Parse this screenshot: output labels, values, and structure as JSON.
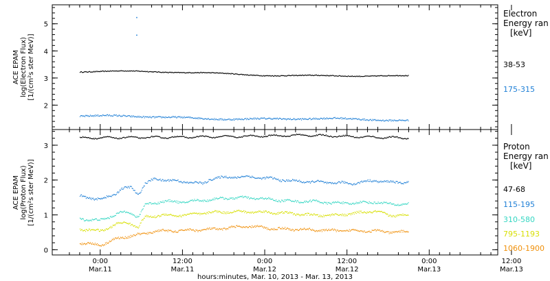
{
  "chart_data": [
    {
      "type": "scatter",
      "panel": "electron",
      "ylabel_lines": [
        "ACE EPAM",
        "log(Electron Flux)",
        "[1/(cm²s ster MeV)]"
      ],
      "ylim": [
        1.1,
        5.7
      ],
      "yticks": [
        2,
        3,
        4,
        5
      ],
      "ytick_labels": [
        "2",
        "3",
        "4",
        "5"
      ],
      "legend": {
        "title_lines": [
          "Electron",
          "Energy ran",
          "[keV]"
        ]
      },
      "series": [
        {
          "name": "38-53",
          "color": "#000000",
          "y_start": 3.27,
          "y_end": 3.05,
          "waves": [
            [
              0.03,
              0.9
            ],
            [
              0.02,
              2.3
            ]
          ]
        },
        {
          "name": "175-315",
          "color": "#1e7fd6",
          "y_start": 1.6,
          "y_end": 1.45,
          "waves": [
            [
              0.03,
              1.0
            ],
            [
              0.02,
              2.8
            ]
          ]
        }
      ],
      "outliers": [
        {
          "t_hours": 10.5,
          "y": 5.25
        },
        {
          "t_hours": 10.5,
          "y": 4.6
        }
      ]
    },
    {
      "type": "scatter",
      "panel": "proton",
      "ylabel_lines": [
        "ACE EPAM",
        "log(Proton Flux)",
        "[1/(cm²s ster MeV)]"
      ],
      "ylim": [
        -0.15,
        3.45
      ],
      "yticks": [
        0,
        1,
        2,
        3
      ],
      "ytick_labels": [
        "0",
        "1",
        "2",
        "3"
      ],
      "legend": {
        "title_lines": [
          "Proton",
          "Energy ran",
          "[keV]"
        ]
      },
      "series": [
        {
          "name": "47-68",
          "color": "#000000",
          "points": [
            [
              -6,
              3.22
            ],
            [
              20,
              3.24
            ],
            [
              40,
              3.26
            ],
            [
              60,
              3.3
            ],
            [
              80,
              3.24
            ],
            [
              90,
              3.22
            ]
          ]
        },
        {
          "name": "115-195",
          "color": "#1e7fd6",
          "points": [
            [
              -6,
              1.55
            ],
            [
              0,
              1.45
            ],
            [
              4,
              1.6
            ],
            [
              6,
              1.75
            ],
            [
              9,
              1.8
            ],
            [
              11,
              1.6
            ],
            [
              13,
              1.9
            ],
            [
              16,
              2.05
            ],
            [
              20,
              2.0
            ],
            [
              26,
              1.95
            ],
            [
              30,
              1.9
            ],
            [
              32,
              2.05
            ],
            [
              38,
              2.1
            ],
            [
              44,
              2.1
            ],
            [
              50,
              2.05
            ],
            [
              56,
              1.98
            ],
            [
              62,
              1.96
            ],
            [
              68,
              1.93
            ],
            [
              74,
              1.92
            ],
            [
              80,
              2.0
            ],
            [
              84,
              1.95
            ],
            [
              90,
              1.95
            ]
          ]
        },
        {
          "name": "310-580",
          "color": "#33d6c2",
          "points": [
            [
              -6,
              0.9
            ],
            [
              0,
              0.85
            ],
            [
              5,
              1.05
            ],
            [
              8,
              1.1
            ],
            [
              11,
              0.95
            ],
            [
              13,
              1.3
            ],
            [
              18,
              1.4
            ],
            [
              24,
              1.38
            ],
            [
              32,
              1.45
            ],
            [
              38,
              1.5
            ],
            [
              44,
              1.5
            ],
            [
              50,
              1.45
            ],
            [
              56,
              1.4
            ],
            [
              62,
              1.4
            ],
            [
              68,
              1.35
            ],
            [
              74,
              1.35
            ],
            [
              80,
              1.38
            ],
            [
              84,
              1.32
            ],
            [
              90,
              1.32
            ]
          ]
        },
        {
          "name": "795-1193",
          "color": "#d7df01",
          "points": [
            [
              -6,
              0.6
            ],
            [
              0,
              0.55
            ],
            [
              5,
              0.75
            ],
            [
              8,
              0.8
            ],
            [
              11,
              0.65
            ],
            [
              13,
              0.95
            ],
            [
              18,
              1.0
            ],
            [
              24,
              1.0
            ],
            [
              32,
              1.08
            ],
            [
              38,
              1.1
            ],
            [
              44,
              1.1
            ],
            [
              50,
              1.08
            ],
            [
              56,
              1.05
            ],
            [
              62,
              1.0
            ],
            [
              68,
              1.0
            ],
            [
              74,
              1.05
            ],
            [
              80,
              1.12
            ],
            [
              84,
              1.0
            ],
            [
              90,
              1.0
            ]
          ]
        },
        {
          "name": "1060-1900",
          "color": "#f0900a",
          "points": [
            [
              -6,
              0.2
            ],
            [
              0,
              0.15
            ],
            [
              4,
              0.3
            ],
            [
              8,
              0.4
            ],
            [
              12,
              0.45
            ],
            [
              16,
              0.55
            ],
            [
              22,
              0.55
            ],
            [
              28,
              0.58
            ],
            [
              34,
              0.6
            ],
            [
              38,
              0.65
            ],
            [
              44,
              0.68
            ],
            [
              50,
              0.62
            ],
            [
              56,
              0.6
            ],
            [
              62,
              0.58
            ],
            [
              68,
              0.56
            ],
            [
              74,
              0.56
            ],
            [
              80,
              0.55
            ],
            [
              84,
              0.52
            ],
            [
              90,
              0.52
            ]
          ]
        }
      ]
    }
  ],
  "x_axis": {
    "xlim_hours": [
      -14,
      116
    ],
    "data_range_hours": [
      -6,
      90
    ],
    "major_ticks": [
      {
        "t": 0,
        "time": "0:00",
        "date": "Mar.11"
      },
      {
        "t": 24,
        "time": "12:00",
        "date": "Mar.11"
      },
      {
        "t": 48,
        "time": "0:00",
        "date": "Mar.12"
      },
      {
        "t": 72,
        "time": "12:00",
        "date": "Mar.12"
      },
      {
        "t": 96,
        "time": "0:00",
        "date": "Mar.13"
      },
      {
        "t": 120,
        "time": "12:00",
        "date": "Mar.13"
      }
    ],
    "xlabel": "hours:minutes, Mar. 10, 2013 - Mar. 13, 2013"
  }
}
